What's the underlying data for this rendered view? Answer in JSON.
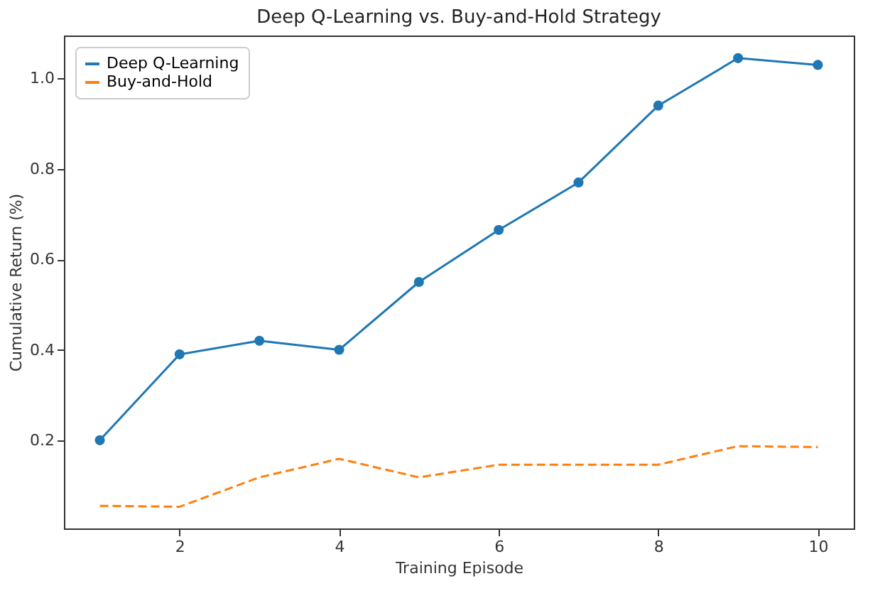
{
  "chart_data": {
    "type": "line",
    "title": "Deep Q-Learning vs. Buy-and-Hold Strategy",
    "xlabel": "Training Episode",
    "ylabel": "Cumulative Return (%)",
    "x": [
      1,
      2,
      3,
      4,
      5,
      6,
      7,
      8,
      9,
      10
    ],
    "series": [
      {
        "name": "Deep Q-Learning",
        "color": "#1f77b4",
        "marker": "circle",
        "line_style": "solid",
        "values": [
          0.2,
          0.39,
          0.42,
          0.4,
          0.55,
          0.665,
          0.77,
          0.94,
          1.045,
          1.03
        ]
      },
      {
        "name": "Buy-and-Hold",
        "color": "#ff7f0e",
        "marker": "none",
        "line_style": "dashed",
        "values": [
          0.055,
          0.053,
          0.118,
          0.159,
          0.118,
          0.146,
          0.146,
          0.146,
          0.187,
          0.185
        ]
      }
    ],
    "xlim": [
      0.55,
      10.45
    ],
    "xticks": [
      2,
      4,
      6,
      8,
      10
    ],
    "ylim": [
      0.005,
      1.095
    ],
    "yticks": [
      {
        "value": 0.2,
        "label": "0.2"
      },
      {
        "value": 0.4,
        "label": "0.4"
      },
      {
        "value": 0.6,
        "label": "0.6"
      },
      {
        "value": 0.8,
        "label": "0.8"
      },
      {
        "value": 1,
        "label": "1.0"
      }
    ],
    "grid": false,
    "legend": "top left"
  }
}
